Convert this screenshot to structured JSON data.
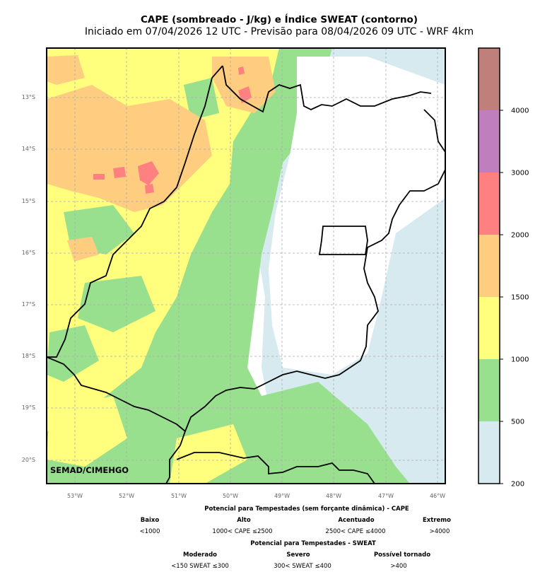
{
  "title": "CAPE (sombreado - J/kg) e Índice SWEAT (contorno)",
  "subtitle": "Iniciado em 07/04/2026 12 UTC - Previsão para 08/04/2026 09 UTC - WRF 4km",
  "credit": "SEMAD/CIMEHGO",
  "map": {
    "lat_labels": [
      "13°S",
      "14°S",
      "15°S",
      "16°S",
      "17°S",
      "18°S",
      "19°S",
      "20°S"
    ],
    "lon_labels": [
      "53°W",
      "52°W",
      "51°W",
      "50°W",
      "49°W",
      "48°W",
      "47°W",
      "46°W"
    ]
  },
  "colorbar": {
    "ticks": [
      "200",
      "500",
      "1000",
      "1500",
      "2000",
      "3000",
      "4000"
    ],
    "colors": [
      "#d6eaf0",
      "#98e08e",
      "#ffff7d",
      "#fecd80",
      "#ff8080",
      "#bf7fbf",
      "#bf7f7a"
    ]
  },
  "legend": {
    "cape_title": "Potencial para Tempestades (sem forçante dinâmica) - CAPE",
    "cape_categories": [
      {
        "name": "Baixo",
        "range": "<1000"
      },
      {
        "name": "Alto",
        "range": "1000< CAPE ≤2500"
      },
      {
        "name": "Acentuado",
        "range": "2500< CAPE ≤4000"
      },
      {
        "name": "Extremo",
        "range": ">4000"
      }
    ],
    "sweat_title": "Potencial para Tempestades - SWEAT",
    "sweat_categories": [
      {
        "name": "Moderado",
        "range": "<150 SWEAT ≤300"
      },
      {
        "name": "Severo",
        "range": "300< SWEAT ≤400"
      },
      {
        "name": "Possível tornado",
        "range": ">400"
      }
    ]
  }
}
